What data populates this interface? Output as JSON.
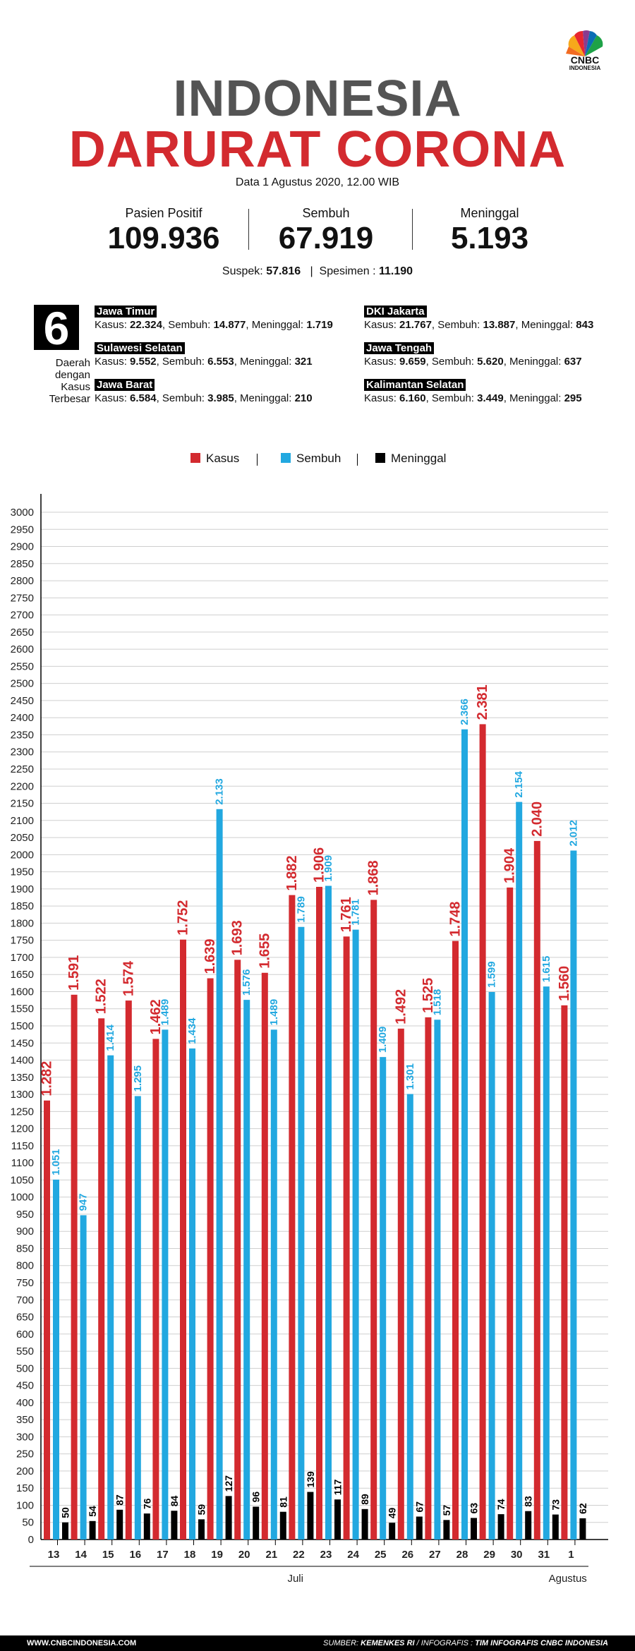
{
  "brand": {
    "logo_text": "CNBC",
    "logo_sub": "INDONESIA"
  },
  "title_line1": "INDONESIA",
  "title_line2": "DARURAT CORONA",
  "date_text": "Data 1 Agustus 2020, 12.00 WIB",
  "stats": [
    {
      "label": "Pasien Positif",
      "value": "109.936"
    },
    {
      "label": "Sembuh",
      "value": "67.919"
    },
    {
      "label": "Meninggal",
      "value": "5.193"
    }
  ],
  "suspek_label": "Suspek:",
  "suspek_value": "57.816",
  "spesimen_label": "Spesimen :",
  "spesimen_value": "11.190",
  "top_regions": {
    "count": "6",
    "label": [
      "Daerah",
      "dengan",
      "Kasus",
      "Terbesar"
    ],
    "items": [
      {
        "name": "Jawa Timur",
        "kasus": "22.324",
        "sembuh": "14.877",
        "meninggal": "1.719"
      },
      {
        "name": "DKI Jakarta",
        "kasus": "21.767",
        "sembuh": "13.887",
        "meninggal": "843"
      },
      {
        "name": "Sulawesi Selatan",
        "kasus": "9.552",
        "sembuh": "6.553",
        "meninggal": "321"
      },
      {
        "name": "Jawa Tengah",
        "kasus": "9.659",
        "sembuh": "5.620",
        "meninggal": "637"
      },
      {
        "name": "Jawa Barat",
        "kasus": "6.584",
        "sembuh": "3.985",
        "meninggal": "210"
      },
      {
        "name": "Kalimantan Selatan",
        "kasus": "6.160",
        "sembuh": "3.449",
        "meninggal": "295"
      }
    ],
    "kasus_label": "Kasus:",
    "sembuh_label": "Sembuh:",
    "meninggal_label": "Meninggal:"
  },
  "colors": {
    "kasus": "#d32a2f",
    "sembuh": "#22a8e0",
    "meninggal": "#000000",
    "title_gray": "#545454"
  },
  "chart_data": {
    "type": "bar",
    "categories": [
      "13",
      "14",
      "15",
      "16",
      "17",
      "18",
      "19",
      "20",
      "21",
      "22",
      "23",
      "24",
      "25",
      "26",
      "27",
      "28",
      "29",
      "30",
      "31",
      "1"
    ],
    "month_labels": [
      {
        "label": "Juli",
        "from": "13",
        "to": "31"
      },
      {
        "label": "Agustus",
        "from": "1",
        "to": "1"
      }
    ],
    "series": [
      {
        "name": "Kasus",
        "color": "#d32a2f",
        "values": [
          1282,
          1591,
          1522,
          1574,
          1462,
          1752,
          1639,
          1693,
          1655,
          1882,
          1906,
          1761,
          1868,
          1492,
          1525,
          1748,
          2381,
          1904,
          2040,
          1560
        ],
        "labels": [
          "1.282",
          "1.591",
          "1.522",
          "1.574",
          "1.462",
          "1.752",
          "1.639",
          "1.693",
          "1.655",
          "1.882",
          "1.906",
          "1.761",
          "1.868",
          "1.492",
          "1.525",
          "1.748",
          "2.381",
          "1.904",
          "2.040",
          "1.560"
        ]
      },
      {
        "name": "Sembuh",
        "color": "#22a8e0",
        "values": [
          1051,
          947,
          1414,
          1295,
          1489,
          1434,
          2133,
          1576,
          1489,
          1789,
          1909,
          1781,
          1409,
          1301,
          1518,
          2366,
          1599,
          2154,
          1615,
          2012
        ],
        "labels": [
          "1.051",
          "947",
          "1.414",
          "1.295",
          "1.489",
          "1.434",
          "2.133",
          "1.576",
          "1.489",
          "1.789",
          "1.909",
          "1.781",
          "1.409",
          "1.301",
          "1.518",
          "2.366",
          "1.599",
          "2.154",
          "1.615",
          "2.012"
        ]
      },
      {
        "name": "Meninggal",
        "color": "#000000",
        "values": [
          50,
          54,
          87,
          76,
          84,
          59,
          127,
          96,
          81,
          139,
          117,
          89,
          49,
          67,
          57,
          63,
          74,
          83,
          73,
          62
        ],
        "labels": [
          "50",
          "54",
          "87",
          "76",
          "84",
          "59",
          "127",
          "96",
          "81",
          "139",
          "117",
          "89",
          "49",
          "67",
          "57",
          "63",
          "74",
          "83",
          "73",
          "62"
        ]
      }
    ],
    "ylim": [
      0,
      3000
    ],
    "yticks": [
      0,
      50,
      100,
      150,
      200,
      250,
      300,
      350,
      400,
      450,
      500,
      550,
      600,
      650,
      700,
      750,
      800,
      850,
      900,
      950,
      1000,
      1050,
      1100,
      1150,
      1200,
      1250,
      1300,
      1350,
      1400,
      1450,
      1500,
      1550,
      1600,
      1650,
      1700,
      1750,
      1800,
      1850,
      1900,
      1950,
      2000,
      2050,
      2100,
      2150,
      2200,
      2250,
      2300,
      2350,
      2400,
      2450,
      2500,
      2550,
      2600,
      2650,
      2700,
      2750,
      2800,
      2850,
      2900,
      2950,
      3000
    ],
    "grid": true,
    "legend_position": "top-center"
  },
  "footer": {
    "left": "WWW.CNBCINDONESIA.COM",
    "source_label": "SUMBER:",
    "source": "KEMENKES RI",
    "infographic_label": "/ INFOGRAFIS :",
    "infographic": "TIM INFOGRAFIS CNBC INDONESIA"
  }
}
